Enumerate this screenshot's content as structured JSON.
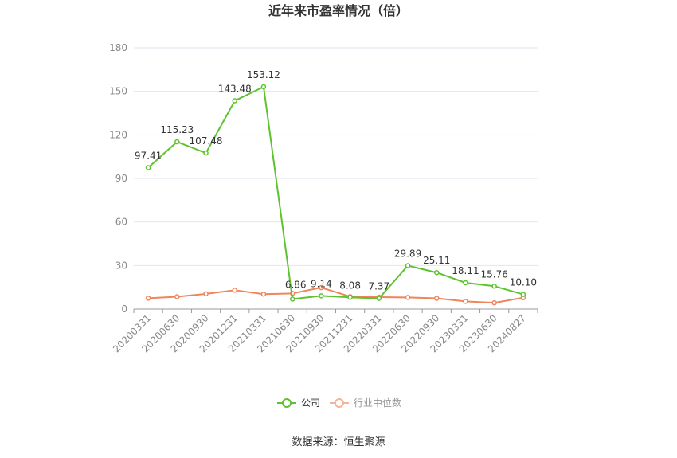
{
  "chart_data": {
    "type": "line",
    "title": "近年来市盈率情况（倍）",
    "categories": [
      "20200331",
      "20200630",
      "20200930",
      "20201231",
      "20210331",
      "20210630",
      "20210930",
      "20211231",
      "20220331",
      "20220630",
      "20220930",
      "20230331",
      "20230630",
      "20240827"
    ],
    "series": [
      {
        "name": "公司",
        "color": "#5ec32e",
        "values": [
          97.41,
          115.23,
          107.48,
          143.48,
          153.12,
          6.86,
          9.14,
          8.08,
          7.37,
          29.89,
          25.11,
          18.11,
          15.76,
          10.1
        ],
        "labels": [
          "97.41",
          "115.23",
          "107.48",
          "143.48",
          "153.12",
          "6.86",
          "9.14",
          "8.08",
          "7.37",
          "29.89",
          "25.11",
          "18.11",
          "15.76",
          "10.10"
        ]
      },
      {
        "name": "行业中位数",
        "color": "#f0845a",
        "values": [
          7.5,
          8.5,
          10.5,
          13.0,
          10.3,
          10.8,
          14.8,
          8.6,
          8.2,
          8.0,
          7.4,
          5.3,
          4.3,
          7.8
        ]
      }
    ],
    "ylim": [
      0,
      180
    ],
    "yticks": [
      "0",
      "30",
      "60",
      "90",
      "120",
      "150",
      "180"
    ],
    "grid": true,
    "legend_position": "bottom"
  },
  "source_text": "数据来源：恒生聚源"
}
